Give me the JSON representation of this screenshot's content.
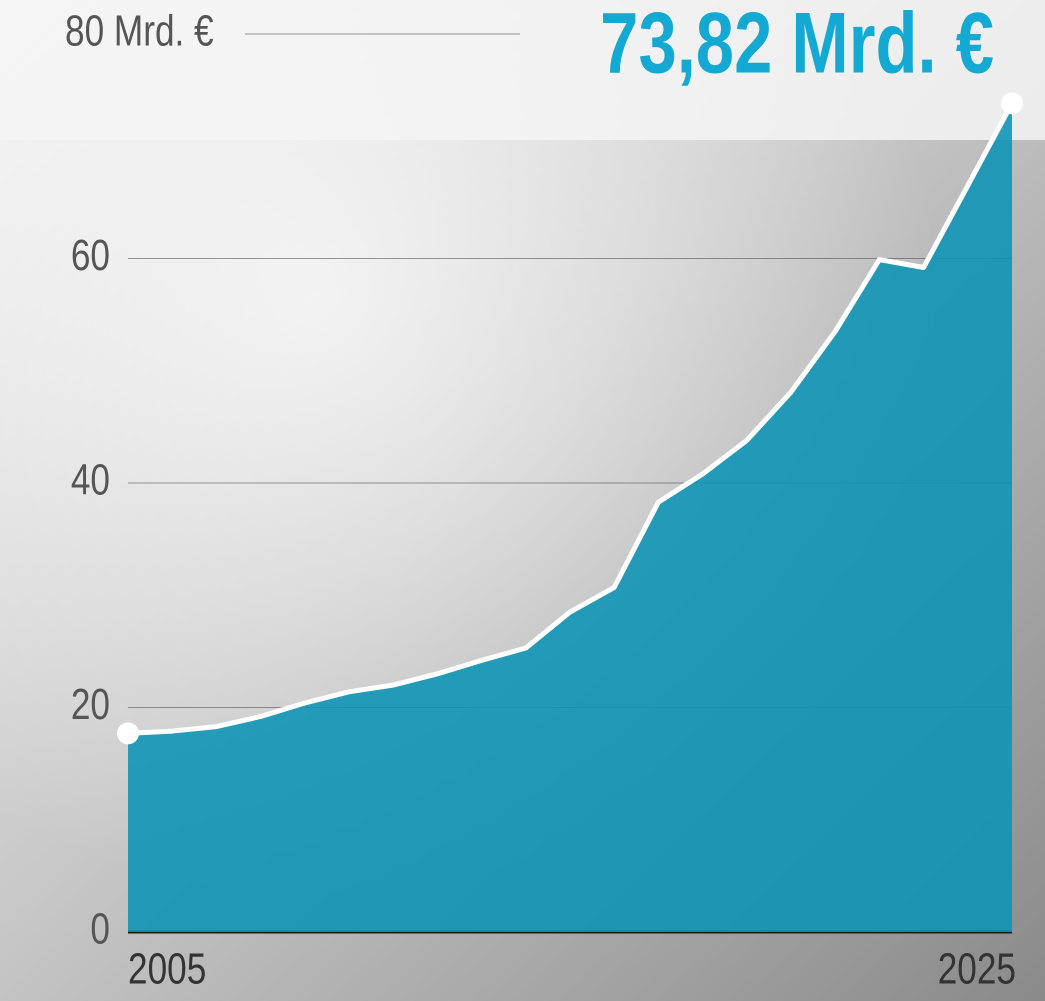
{
  "chart_data": {
    "type": "area",
    "x": [
      2005,
      2006,
      2007,
      2008,
      2009,
      2010,
      2011,
      2012,
      2013,
      2014,
      2015,
      2016,
      2017,
      2018,
      2019,
      2020,
      2021,
      2022,
      2023,
      2024,
      2025
    ],
    "values": [
      17.7,
      17.9,
      18.3,
      19.2,
      20.4,
      21.4,
      22.0,
      23.0,
      24.2,
      25.3,
      28.5,
      30.7,
      38.3,
      40.8,
      43.8,
      48.1,
      53.5,
      59.9,
      59.2,
      66.5,
      73.82
    ],
    "value_labels": [
      null,
      null,
      null,
      null,
      null,
      null,
      null,
      null,
      null,
      null,
      null,
      null,
      null,
      null,
      null,
      null,
      null,
      null,
      null,
      null,
      "73,82 Mrd. €"
    ],
    "color": "#0a93b5",
    "xlim": [
      2005,
      2025
    ],
    "xticks": [
      2005,
      2025
    ],
    "ylim": [
      0,
      80
    ],
    "yticks": [
      0,
      20,
      40,
      60,
      {
        "value": 80,
        "label": "80 Mrd. €"
      }
    ],
    "grid": true
  }
}
